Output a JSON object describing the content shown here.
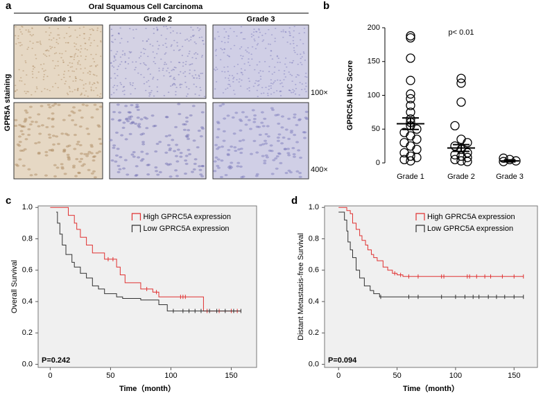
{
  "panel_a": {
    "label": "a",
    "title": "Oral Squamous Cell Carcinoma",
    "columns": [
      "Grade 1",
      "Grade 2",
      "Grade 3"
    ],
    "row_label": "GPR5A  staining",
    "magnifications": [
      "100×",
      "400×"
    ]
  },
  "chart_data": [
    {
      "type": "dotplot",
      "label": "b",
      "annotation": "p< 0.01",
      "ylabel": "GPRC5A IHC Score",
      "categories": [
        "Grade 1",
        "Grade 2",
        "Grade 3"
      ],
      "values": [
        [
          188,
          185,
          155,
          122,
          102,
          95,
          85,
          75,
          65,
          60,
          55,
          50,
          45,
          40,
          35,
          30,
          25,
          20,
          15,
          10,
          8,
          5,
          3
        ],
        [
          125,
          118,
          90,
          55,
          35,
          30,
          25,
          20,
          15,
          12,
          10,
          8,
          5,
          3,
          2
        ],
        [
          7,
          5,
          3,
          2
        ]
      ],
      "means": [
        58,
        22,
        3
      ],
      "errors": [
        8.5,
        5,
        1.5
      ],
      "ylim": [
        0,
        200
      ],
      "yticks": [
        0,
        50,
        100,
        150,
        200
      ]
    },
    {
      "type": "survival",
      "label": "c",
      "annotation": "P=0.242",
      "ylabel": "Overall Survival",
      "xlabel": "Time（month）",
      "xlim": [
        -10,
        171
      ],
      "ylim": [
        -0.02,
        1.01
      ],
      "xticks": [
        0,
        50,
        100,
        150
      ],
      "yticks": [
        {
          "value": 0,
          "label": "0.0"
        },
        0.2,
        0.4,
        0.6,
        0.8,
        {
          "value": 1,
          "label": "1.0"
        }
      ],
      "series": [
        {
          "name": "High GPRC5A expression",
          "color": "#e03030",
          "x": [
            0,
            15,
            20,
            22,
            25,
            30,
            35,
            45,
            55,
            58,
            62,
            75,
            85,
            90,
            127,
            158
          ],
          "values": [
            1.0,
            0.95,
            0.9,
            0.86,
            0.81,
            0.76,
            0.71,
            0.67,
            0.62,
            0.57,
            0.52,
            0.48,
            0.46,
            0.43,
            0.34,
            0.34
          ],
          "censor_x": [
            48,
            52,
            80,
            88,
            108,
            110,
            112,
            130,
            140,
            150,
            155
          ]
        },
        {
          "name": "Low GPRC5A expression",
          "color": "#303030",
          "x": [
            5,
            6,
            8,
            10,
            13,
            18,
            20,
            25,
            30,
            35,
            40,
            45,
            55,
            60,
            75,
            90,
            97,
            158
          ],
          "values": [
            0.97,
            0.9,
            0.83,
            0.76,
            0.7,
            0.65,
            0.62,
            0.58,
            0.55,
            0.5,
            0.48,
            0.45,
            0.43,
            0.42,
            0.41,
            0.38,
            0.34,
            0.34
          ],
          "censor_x": [
            102,
            110,
            115,
            120,
            125,
            132,
            138,
            145,
            152,
            158
          ]
        }
      ]
    },
    {
      "type": "survival",
      "label": "d",
      "annotation": "P=0.094",
      "ylabel": "Distant Metastasis-free Survival",
      "xlabel": "Time（month）",
      "xlim": [
        -12,
        170
      ],
      "ylim": [
        -0.02,
        1.01
      ],
      "xticks": [
        0,
        50,
        100,
        150
      ],
      "yticks": [
        {
          "value": 0,
          "label": "0.0"
        },
        0.2,
        0.4,
        0.6,
        0.8,
        {
          "value": 1,
          "label": "1.0"
        }
      ],
      "series": [
        {
          "name": "High GPRC5A expression",
          "color": "#e03030",
          "x": [
            0,
            7,
            10,
            12,
            15,
            18,
            20,
            23,
            25,
            28,
            30,
            33,
            38,
            42,
            46,
            50,
            55,
            158
          ],
          "values": [
            1.0,
            0.98,
            0.96,
            0.9,
            0.86,
            0.82,
            0.79,
            0.76,
            0.73,
            0.7,
            0.68,
            0.66,
            0.62,
            0.6,
            0.58,
            0.57,
            0.56,
            0.56
          ],
          "censor_x": [
            48,
            53,
            60,
            68,
            88,
            90,
            110,
            112,
            118,
            125,
            130,
            140,
            150,
            158
          ]
        },
        {
          "name": "Low GPRC5A expression",
          "color": "#303030",
          "x": [
            0,
            5,
            7,
            8,
            10,
            12,
            15,
            18,
            22,
            27,
            30,
            35,
            158
          ],
          "values": [
            0.97,
            0.92,
            0.85,
            0.78,
            0.73,
            0.68,
            0.6,
            0.55,
            0.5,
            0.47,
            0.45,
            0.43,
            0.43
          ],
          "censor_x": [
            36,
            60,
            68,
            88,
            100,
            108,
            115,
            120,
            128,
            135,
            142,
            150,
            158
          ]
        }
      ]
    }
  ]
}
